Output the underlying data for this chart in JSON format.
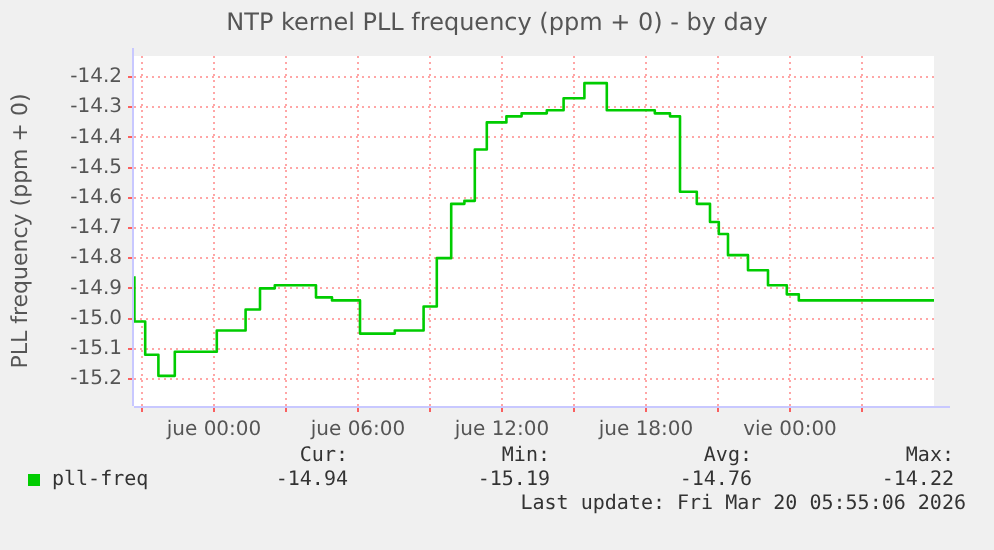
{
  "chart_data": {
    "type": "step",
    "title": "NTP kernel PLL frequency (ppm + 0) - by day",
    "ylabel": "PLL frequency (ppm + 0)",
    "x": [
      "2026-03-18T20:41",
      "2026-03-18T21:08",
      "2026-03-18T21:41",
      "2026-03-18T22:22",
      "2026-03-19T00:07",
      "2026-03-19T01:19",
      "2026-03-19T01:55",
      "2026-03-19T02:32",
      "2026-03-19T03:22",
      "2026-03-19T04:15",
      "2026-03-19T04:55",
      "2026-03-19T06:05",
      "2026-03-19T07:32",
      "2026-03-19T08:44",
      "2026-03-19T09:17",
      "2026-03-19T09:53",
      "2026-03-19T10:26",
      "2026-03-19T10:52",
      "2026-03-19T11:22",
      "2026-03-19T12:11",
      "2026-03-19T12:49",
      "2026-03-19T13:52",
      "2026-03-19T14:34",
      "2026-03-19T15:26",
      "2026-03-19T16:22",
      "2026-03-19T18:22",
      "2026-03-19T19:00",
      "2026-03-19T19:25",
      "2026-03-19T20:07",
      "2026-03-19T20:40",
      "2026-03-19T21:02",
      "2026-03-19T21:25",
      "2026-03-19T22:15",
      "2026-03-19T23:05",
      "2026-03-19T23:52",
      "2026-03-20T00:22",
      "2026-03-20T05:38",
      "2026-03-20T06:00"
    ],
    "series": [
      {
        "name": "pll-freq",
        "color": "#00cc00",
        "values": [
          -14.86,
          -15.01,
          -15.12,
          -15.19,
          -15.11,
          -15.04,
          -14.97,
          -14.9,
          -14.89,
          -14.89,
          -14.93,
          -14.94,
          -15.05,
          -15.04,
          -14.96,
          -14.8,
          -14.62,
          -14.61,
          -14.44,
          -14.35,
          -14.33,
          -14.32,
          -14.31,
          -14.27,
          -14.22,
          -14.31,
          -14.32,
          -14.33,
          -14.58,
          -14.62,
          -14.68,
          -14.72,
          -14.79,
          -14.84,
          -14.89,
          -14.92,
          -14.94,
          -14.94
        ]
      }
    ],
    "xlim": [
      "2026-03-18T20:40",
      "2026-03-20T06:00"
    ],
    "xticks": [
      {
        "value": "2026-03-18T21:00",
        "label": null
      },
      {
        "value": "2026-03-19T00:00",
        "label": "jue 00:00"
      },
      {
        "value": "2026-03-19T03:00",
        "label": null
      },
      {
        "value": "2026-03-19T06:00",
        "label": "jue 06:00"
      },
      {
        "value": "2026-03-19T09:00",
        "label": null
      },
      {
        "value": "2026-03-19T12:00",
        "label": "jue 12:00"
      },
      {
        "value": "2026-03-19T15:00",
        "label": null
      },
      {
        "value": "2026-03-19T18:00",
        "label": "jue 18:00"
      },
      {
        "value": "2026-03-19T21:00",
        "label": null
      },
      {
        "value": "2026-03-20T00:00",
        "label": "vie 00:00"
      },
      {
        "value": "2026-03-20T03:00",
        "label": null
      }
    ],
    "ylim": [
      -15.29,
      -14.13
    ],
    "yticks": [
      -15.2,
      -15.1,
      {
        "value": -15,
        "label": "-15.0"
      },
      -14.9,
      -14.8,
      -14.7,
      -14.6,
      -14.5,
      -14.4,
      -14.3,
      -14.2
    ],
    "grid": true,
    "legend": "bottom left",
    "marker": "none",
    "line_style": "solid",
    "annotations": [
      "Cur:",
      "-14.94",
      "Min:",
      "-15.19",
      "Avg:",
      "-14.76",
      "Max:",
      "-14.22",
      "Last update: Fri Mar 20 05:55:06 2026"
    ]
  }
}
